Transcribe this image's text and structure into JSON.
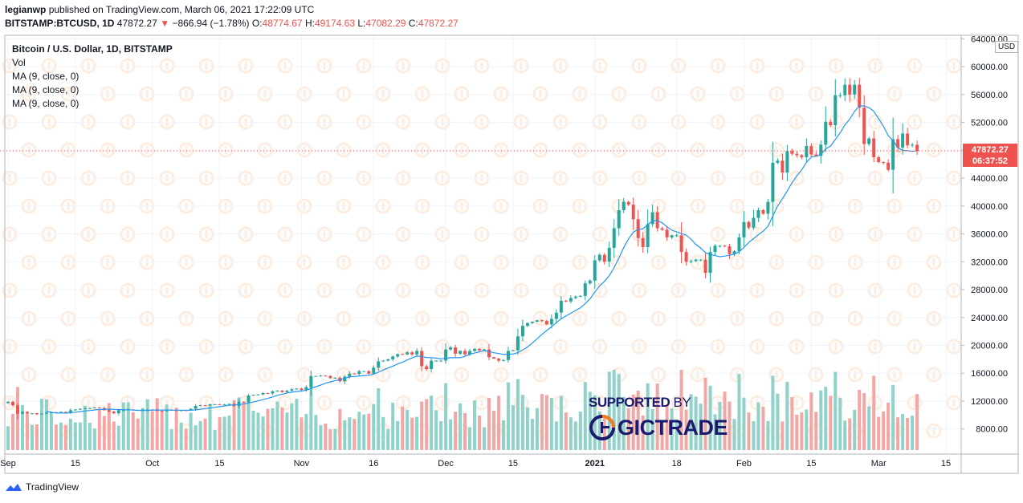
{
  "header": {
    "publisher": "legianwp",
    "published_text": "published on TradingView.com, March 06, 2021 17:22:09 UTC",
    "symbol": "BITSTAMP:BTCUSD, 1D",
    "last": "47872.27",
    "change": "−866.94 (−1.78%)",
    "o_label": "O:",
    "o_value": "48774.67",
    "h_label": "H:",
    "h_value": "49174.63",
    "l_label": "L:",
    "l_value": "47082.29",
    "c_label": "C:",
    "c_value": "47872.27"
  },
  "legend": {
    "title": "Bitcoin / U.S. Dollar, 1D, BITSTAMP",
    "items": [
      "Vol",
      "MA (9, close, 0)",
      "MA (9, close, 0)",
      "MA (9, close, 0)"
    ]
  },
  "price_tag": {
    "price": "47872.27",
    "countdown": "06:37:52"
  },
  "currency": "USD",
  "sponsor": {
    "supported": "SUPPORTED",
    "by": "BY",
    "brand": "GICTRADE"
  },
  "footer": {
    "brand": "TradingView"
  },
  "colors": {
    "up": "#26a69a",
    "down": "#ef5350",
    "ma": "#2196f3",
    "vol_up": "#8fd2c9",
    "vol_down": "#f3a7a4",
    "grid": "#f0f3fa",
    "sponsor": "#1a1a6e"
  },
  "chart_data": {
    "type": "candlestick",
    "yaxis_ticks": [
      "64000.00",
      "60000.00",
      "56000.00",
      "52000.00",
      "48000.00",
      "44000.00",
      "40000.00",
      "36000.00",
      "32000.00",
      "28000.00",
      "24000.00",
      "20000.00",
      "16000.00",
      "12000.00",
      "8000.00"
    ],
    "ylim": [
      4400,
      64500
    ],
    "xaxis_ticks": [
      {
        "label": "Sep",
        "day": 0
      },
      {
        "label": "15",
        "day": 14
      },
      {
        "label": "Oct",
        "day": 30
      },
      {
        "label": "15",
        "day": 44
      },
      {
        "label": "Nov",
        "day": 61
      },
      {
        "label": "16",
        "day": 76
      },
      {
        "label": "Dec",
        "day": 91
      },
      {
        "label": "15",
        "day": 105
      },
      {
        "label": "2021",
        "day": 122
      },
      {
        "label": "18",
        "day": 139
      },
      {
        "label": "Feb",
        "day": 153
      },
      {
        "label": "15",
        "day": 167
      },
      {
        "label": "Mar",
        "day": 181
      },
      {
        "label": "15",
        "day": 195
      }
    ],
    "start_date": "2020-09-01",
    "close": [
      11900,
      11400,
      10200,
      10450,
      10200,
      10250,
      10100,
      10200,
      10350,
      10400,
      10350,
      10450,
      10300,
      10700,
      10800,
      10900,
      10950,
      11000,
      11100,
      11000,
      10700,
      10500,
      10250,
      10700,
      10700,
      10800,
      10750,
      10700,
      10800,
      10800,
      10790,
      10600,
      10550,
      10680,
      10750,
      10600,
      10700,
      10650,
      10900,
      11300,
      11400,
      11380,
      11550,
      11550,
      11450,
      11550,
      11600,
      11300,
      11900,
      11850,
      12800,
      12900,
      12950,
      13150,
      13100,
      13400,
      13500,
      13300,
      13500,
      13700,
      13800,
      13600,
      14000,
      15600,
      15600,
      15650,
      15600,
      15300,
      15350,
      14850,
      15500,
      15950,
      15900,
      16300,
      16300,
      15950,
      16800,
      17700,
      17800,
      18000,
      18400,
      18750,
      18700,
      19000,
      18700,
      19200,
      17000,
      16600,
      17800,
      17800,
      17800,
      19400,
      19700,
      18800,
      19200,
      18700,
      19200,
      19500,
      19300,
      19400,
      18300,
      18100,
      17800,
      17900,
      19200,
      19300,
      21300,
      22800,
      23200,
      23400,
      23600,
      23500,
      23000,
      23800,
      24700,
      26400,
      26300,
      26800,
      27000,
      27100,
      28900,
      29300,
      32200,
      33000,
      32000,
      34000,
      36800,
      39400,
      40600,
      40200,
      38100,
      35400,
      34100,
      37400,
      39100,
      36800,
      36600,
      35500,
      35800,
      35800,
      33400,
      32000,
      32100,
      32300,
      32300,
      30400,
      33400,
      34300,
      34300,
      34200,
      33100,
      33500,
      35500,
      37700,
      36900,
      38300,
      39400,
      38900,
      40600,
      46200,
      46500,
      44800,
      47900,
      47500,
      47300,
      47000,
      48600,
      47400,
      47200,
      48800,
      52100,
      51600,
      55900,
      55900,
      57400,
      56000,
      57400,
      54100,
      48900,
      49700,
      47000,
      46300,
      46200,
      45200,
      49600,
      48400,
      50400,
      48700,
      48800,
      47900
    ]
  }
}
